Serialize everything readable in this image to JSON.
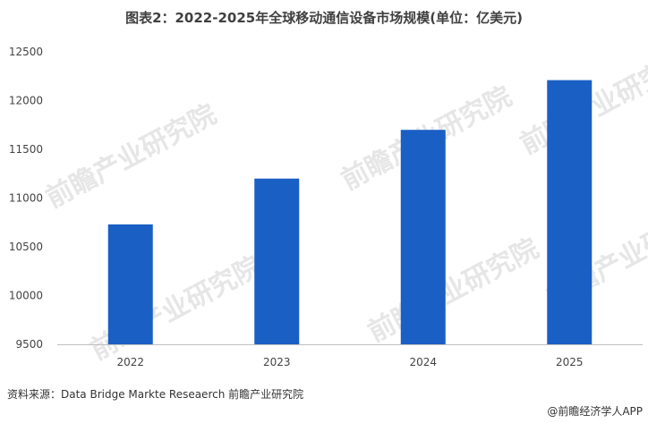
{
  "title": "图表2：2022-2025年全球移动通信设备市场规模(单位：亿美元)",
  "source": "资料来源：Data Bridge Markte Reseaerch 前瞻产业研究院",
  "brand": "@前瞻经济学人APP",
  "watermark": "前瞻产业研究院",
  "colors": {
    "bar": "#1a5fc4",
    "axis": "#bfbfbf"
  },
  "chart_data": {
    "type": "bar",
    "title": "图表2：2022-2025年全球移动通信设备市场规模(单位：亿美元)",
    "categories": [
      "2022",
      "2023",
      "2024",
      "2025"
    ],
    "values": [
      10730,
      11200,
      11700,
      12210
    ],
    "ylim": [
      9500,
      12500
    ],
    "yticks": [
      9500,
      10000,
      10500,
      11000,
      11500,
      12000,
      12500
    ],
    "xlabel": "",
    "ylabel": "",
    "grid": false,
    "legend": "none"
  }
}
